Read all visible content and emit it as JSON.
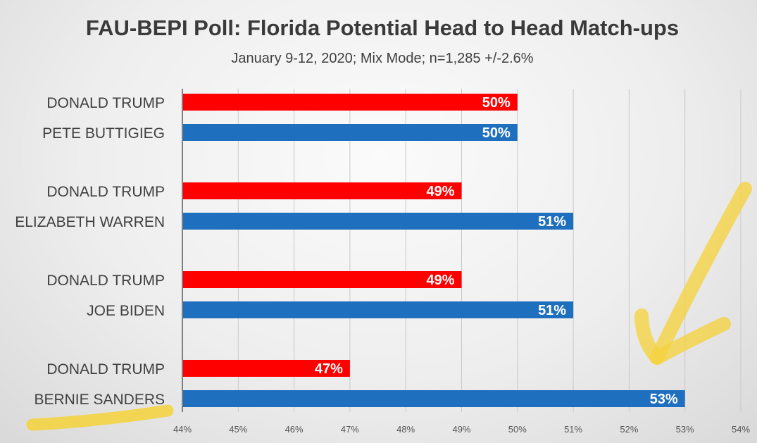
{
  "chart_data": {
    "type": "bar",
    "orientation": "horizontal",
    "title": "FAU-BEPI Poll: Florida Potential Head to Head Match-ups",
    "subtitle": "January 9-12, 2020; Mix Mode; n=1,285 +/-2.6%",
    "xlim": [
      0.44,
      0.54
    ],
    "xticks": [
      "44%",
      "45%",
      "46%",
      "47%",
      "48%",
      "49%",
      "50%",
      "51%",
      "52%",
      "53%",
      "54%"
    ],
    "grid": true,
    "colors": {
      "republican": "#ff0000",
      "democrat": "#1f6fbf"
    },
    "matchups": [
      {
        "rows": [
          {
            "candidate": "DONALD TRUMP",
            "party": "republican",
            "value": 0.5,
            "label": "50%"
          },
          {
            "candidate": "PETE BUTTIGIEG",
            "party": "democrat",
            "value": 0.5,
            "label": "50%"
          }
        ]
      },
      {
        "rows": [
          {
            "candidate": "DONALD TRUMP",
            "party": "republican",
            "value": 0.49,
            "label": "49%"
          },
          {
            "candidate": "ELIZABETH WARREN",
            "party": "democrat",
            "value": 0.51,
            "label": "51%"
          }
        ]
      },
      {
        "rows": [
          {
            "candidate": "DONALD TRUMP",
            "party": "republican",
            "value": 0.49,
            "label": "49%"
          },
          {
            "candidate": "JOE BIDEN",
            "party": "democrat",
            "value": 0.51,
            "label": "51%"
          }
        ]
      },
      {
        "rows": [
          {
            "candidate": "DONALD TRUMP",
            "party": "republican",
            "value": 0.47,
            "label": "47%"
          },
          {
            "candidate": "BERNIE SANDERS",
            "party": "democrat",
            "value": 0.53,
            "label": "53%"
          }
        ]
      }
    ]
  },
  "annotations": {
    "highlight_color": "#f5d23a"
  }
}
